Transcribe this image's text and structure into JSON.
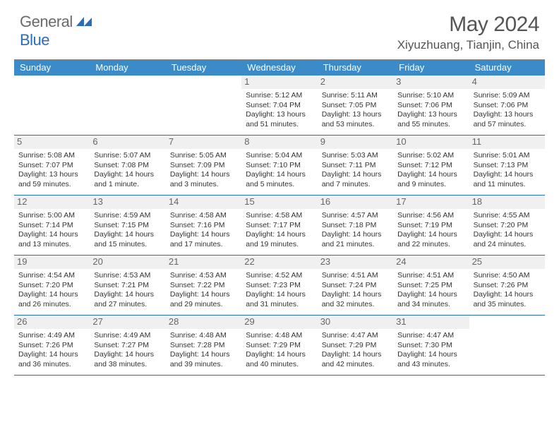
{
  "logo": {
    "text1": "General",
    "text2": "Blue"
  },
  "title": "May 2024",
  "subtitle": "Xiyuzhuang, Tianjin, China",
  "colors": {
    "header_bg": "#3b8bc9",
    "header_text": "#ffffff",
    "week_border": "#2a6db8",
    "logo_gray": "#6a6a6a",
    "logo_blue": "#2a6db8",
    "daynum_bg": "#f0f0f0",
    "text": "#333333"
  },
  "day_names": [
    "Sunday",
    "Monday",
    "Tuesday",
    "Wednesday",
    "Thursday",
    "Friday",
    "Saturday"
  ],
  "weeks": [
    [
      null,
      null,
      null,
      {
        "n": "1",
        "sr": "5:12 AM",
        "ss": "7:04 PM",
        "dl": "13 hours and 51 minutes."
      },
      {
        "n": "2",
        "sr": "5:11 AM",
        "ss": "7:05 PM",
        "dl": "13 hours and 53 minutes."
      },
      {
        "n": "3",
        "sr": "5:10 AM",
        "ss": "7:06 PM",
        "dl": "13 hours and 55 minutes."
      },
      {
        "n": "4",
        "sr": "5:09 AM",
        "ss": "7:06 PM",
        "dl": "13 hours and 57 minutes."
      }
    ],
    [
      {
        "n": "5",
        "sr": "5:08 AM",
        "ss": "7:07 PM",
        "dl": "13 hours and 59 minutes."
      },
      {
        "n": "6",
        "sr": "5:07 AM",
        "ss": "7:08 PM",
        "dl": "14 hours and 1 minute."
      },
      {
        "n": "7",
        "sr": "5:05 AM",
        "ss": "7:09 PM",
        "dl": "14 hours and 3 minutes."
      },
      {
        "n": "8",
        "sr": "5:04 AM",
        "ss": "7:10 PM",
        "dl": "14 hours and 5 minutes."
      },
      {
        "n": "9",
        "sr": "5:03 AM",
        "ss": "7:11 PM",
        "dl": "14 hours and 7 minutes."
      },
      {
        "n": "10",
        "sr": "5:02 AM",
        "ss": "7:12 PM",
        "dl": "14 hours and 9 minutes."
      },
      {
        "n": "11",
        "sr": "5:01 AM",
        "ss": "7:13 PM",
        "dl": "14 hours and 11 minutes."
      }
    ],
    [
      {
        "n": "12",
        "sr": "5:00 AM",
        "ss": "7:14 PM",
        "dl": "14 hours and 13 minutes."
      },
      {
        "n": "13",
        "sr": "4:59 AM",
        "ss": "7:15 PM",
        "dl": "14 hours and 15 minutes."
      },
      {
        "n": "14",
        "sr": "4:58 AM",
        "ss": "7:16 PM",
        "dl": "14 hours and 17 minutes."
      },
      {
        "n": "15",
        "sr": "4:58 AM",
        "ss": "7:17 PM",
        "dl": "14 hours and 19 minutes."
      },
      {
        "n": "16",
        "sr": "4:57 AM",
        "ss": "7:18 PM",
        "dl": "14 hours and 21 minutes."
      },
      {
        "n": "17",
        "sr": "4:56 AM",
        "ss": "7:19 PM",
        "dl": "14 hours and 22 minutes."
      },
      {
        "n": "18",
        "sr": "4:55 AM",
        "ss": "7:20 PM",
        "dl": "14 hours and 24 minutes."
      }
    ],
    [
      {
        "n": "19",
        "sr": "4:54 AM",
        "ss": "7:20 PM",
        "dl": "14 hours and 26 minutes."
      },
      {
        "n": "20",
        "sr": "4:53 AM",
        "ss": "7:21 PM",
        "dl": "14 hours and 27 minutes."
      },
      {
        "n": "21",
        "sr": "4:53 AM",
        "ss": "7:22 PM",
        "dl": "14 hours and 29 minutes."
      },
      {
        "n": "22",
        "sr": "4:52 AM",
        "ss": "7:23 PM",
        "dl": "14 hours and 31 minutes."
      },
      {
        "n": "23",
        "sr": "4:51 AM",
        "ss": "7:24 PM",
        "dl": "14 hours and 32 minutes."
      },
      {
        "n": "24",
        "sr": "4:51 AM",
        "ss": "7:25 PM",
        "dl": "14 hours and 34 minutes."
      },
      {
        "n": "25",
        "sr": "4:50 AM",
        "ss": "7:26 PM",
        "dl": "14 hours and 35 minutes."
      }
    ],
    [
      {
        "n": "26",
        "sr": "4:49 AM",
        "ss": "7:26 PM",
        "dl": "14 hours and 36 minutes."
      },
      {
        "n": "27",
        "sr": "4:49 AM",
        "ss": "7:27 PM",
        "dl": "14 hours and 38 minutes."
      },
      {
        "n": "28",
        "sr": "4:48 AM",
        "ss": "7:28 PM",
        "dl": "14 hours and 39 minutes."
      },
      {
        "n": "29",
        "sr": "4:48 AM",
        "ss": "7:29 PM",
        "dl": "14 hours and 40 minutes."
      },
      {
        "n": "30",
        "sr": "4:47 AM",
        "ss": "7:29 PM",
        "dl": "14 hours and 42 minutes."
      },
      {
        "n": "31",
        "sr": "4:47 AM",
        "ss": "7:30 PM",
        "dl": "14 hours and 43 minutes."
      },
      null
    ]
  ],
  "labels": {
    "sunrise": "Sunrise:",
    "sunset": "Sunset:",
    "daylight": "Daylight:"
  }
}
